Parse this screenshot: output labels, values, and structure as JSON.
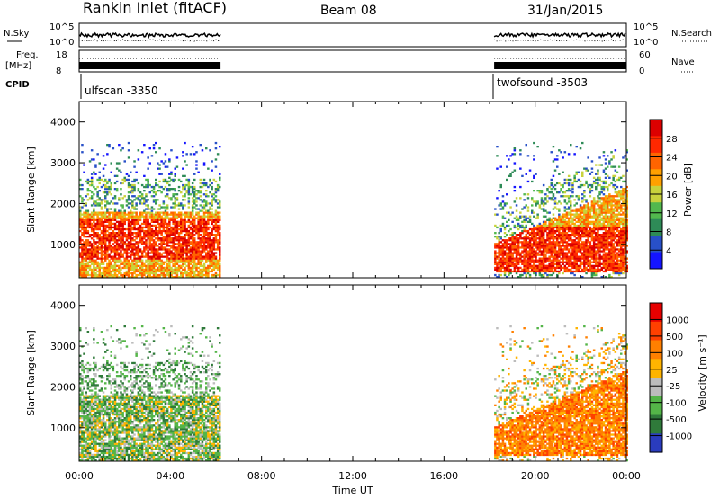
{
  "header": {
    "station": "Rankin Inlet (fitACF)",
    "beam": "Beam 08",
    "date": "31/Jan/2015"
  },
  "strips": {
    "nsky_label": "N.Sky",
    "nsky_ticks": [
      "10^5",
      "10^0"
    ],
    "nsearch_label": "N.Search",
    "nsearch_ticks": [
      "10^5",
      "10^0"
    ],
    "freq_label": "Freq.",
    "freq_unit": "[MHz]",
    "freq_ticks": [
      "18",
      "8"
    ],
    "nave_label": "Nave",
    "nave_ticks": [
      "60",
      "0"
    ],
    "cpid_label": "CPID",
    "cpid_left": "ulfscan -3350",
    "cpid_right": "twofsound -3503"
  },
  "chart_data": [
    {
      "type": "heatmap",
      "quantity": "Power",
      "colorbar_label": "Power [dB]",
      "colorbar_ticks": [
        "28",
        "24",
        "20",
        "16",
        "12",
        "8",
        "4"
      ],
      "clim": [
        0,
        32
      ],
      "ylabel": "Slant Range [km]",
      "yticks": [
        "4000",
        "3000",
        "2000",
        "1000"
      ],
      "ylim": [
        180,
        4500
      ],
      "xlim_hours": [
        0,
        24
      ],
      "data_windows_hours": [
        [
          0.0,
          6.2
        ],
        [
          18.2,
          24.0
        ]
      ]
    },
    {
      "type": "heatmap",
      "quantity": "Velocity",
      "colorbar_label": "Velocity [m s⁻¹]",
      "colorbar_ticks": [
        "1000",
        "500",
        "100",
        "25",
        "-25",
        "-100",
        "-500",
        "-1000"
      ],
      "clim": [
        -1200,
        1200
      ],
      "ylabel": "Slant Range [km]",
      "yticks": [
        "4000",
        "3000",
        "2000",
        "1000"
      ],
      "ylim": [
        180,
        4500
      ],
      "xlabel": "Time UT",
      "xticks": [
        "00:00",
        "04:00",
        "08:00",
        "12:00",
        "16:00",
        "20:00",
        "00:00"
      ],
      "xlim_hours": [
        0,
        24
      ],
      "data_windows_hours": [
        [
          0.0,
          6.2
        ],
        [
          18.2,
          24.0
        ]
      ]
    }
  ],
  "colors": {
    "power_scale": [
      "#1414ff",
      "#2850c8",
      "#2e8b57",
      "#52b84e",
      "#c8d23c",
      "#ffa000",
      "#ff6400",
      "#ff2800",
      "#dc0000"
    ],
    "velocity_scale": [
      "#2a3cbe",
      "#2f7a3a",
      "#54b548",
      "#bcbcbc",
      "#ffb400",
      "#ff8000",
      "#ff4000",
      "#e60000"
    ]
  }
}
